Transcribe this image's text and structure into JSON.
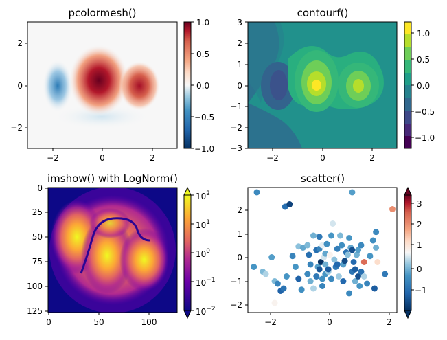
{
  "chart_data": [
    {
      "type": "heatmap",
      "title": "pcolormesh()",
      "colormap": "RdBu_r",
      "xlim": [
        -3,
        3
      ],
      "ylim": [
        -3,
        3
      ],
      "xticks": [
        "−2",
        "0",
        "2"
      ],
      "yticks": [
        "−2",
        "0",
        "2"
      ],
      "colorbar": {
        "range": [
          -1.0,
          1.0
        ],
        "ticks": [
          "1.0",
          "0.5",
          "0.0",
          "−0.5",
          "−1.0"
        ]
      },
      "peaks": [
        {
          "x": -1.8,
          "y": 0.0,
          "value": -0.6
        },
        {
          "x": -0.3,
          "y": 0.1,
          "value": 1.0
        },
        {
          "x": 1.5,
          "y": 0.0,
          "value": 0.8
        }
      ]
    },
    {
      "type": "heatmap",
      "title": "contourf()",
      "colormap": "viridis",
      "xlim": [
        -3,
        3
      ],
      "ylim": [
        -3,
        3
      ],
      "xticks": [
        "−2",
        "0",
        "2"
      ],
      "yticks": [
        "3",
        "2",
        "1",
        "0",
        "−1",
        "−2",
        "−3"
      ],
      "colorbar": {
        "range": [
          -1.2,
          1.2
        ],
        "ticks": [
          "1.0",
          "0.5",
          "0.0",
          "−0.5",
          "−1.0"
        ]
      }
    },
    {
      "type": "heatmap",
      "title": "imshow() with LogNorm()",
      "colormap": "plasma",
      "scale": "log",
      "xlim": [
        0,
        128
      ],
      "ylim": [
        128,
        0
      ],
      "xticks": [
        "0",
        "50",
        "100"
      ],
      "yticks": [
        "0",
        "25",
        "50",
        "75",
        "100",
        "125"
      ],
      "colorbar": {
        "range": [
          0.01,
          100
        ],
        "ticks": [
          "10",
          "10",
          "10",
          "10",
          "10"
        ],
        "exponents": [
          "2",
          "1",
          "0",
          "−1",
          "−2"
        ]
      }
    },
    {
      "type": "scatter",
      "title": "scatter()",
      "colormap": "RdBu_r",
      "xlim": [
        -2.8,
        2.2
      ],
      "ylim": [
        -2.3,
        2.9
      ],
      "xticks": [
        "−2",
        "0",
        "2"
      ],
      "yticks": [
        "2",
        "1",
        "0",
        "−1",
        "−2"
      ],
      "colorbar": {
        "range": [
          -2.0,
          3.6
        ],
        "ticks": [
          "3",
          "2",
          "1",
          "0",
          "−1"
        ]
      },
      "points": [
        [
          -2.5,
          2.7,
          -0.5
        ],
        [
          -1.55,
          2.1,
          -1.0
        ],
        [
          -1.4,
          2.2,
          -1.7
        ],
        [
          0.7,
          2.7,
          -0.2
        ],
        [
          2.05,
          2.0,
          2.2
        ],
        [
          -2.6,
          -0.4,
          -0.3
        ],
        [
          -2.3,
          -0.6,
          0.1
        ],
        [
          -2.2,
          -0.7,
          0.4
        ],
        [
          -2.0,
          0.0,
          -0.2
        ],
        [
          -1.9,
          -1.0,
          0.1
        ],
        [
          -1.8,
          -1.1,
          -0.6
        ],
        [
          -1.7,
          -1.4,
          -1.2
        ],
        [
          -1.6,
          -1.3,
          -0.9
        ],
        [
          -1.9,
          -1.9,
          0.9
        ],
        [
          -1.5,
          -0.8,
          -0.3
        ],
        [
          -1.3,
          0.05,
          -0.6
        ],
        [
          -1.2,
          -0.4,
          -0.3
        ],
        [
          -1.1,
          -0.9,
          -1.2
        ],
        [
          -1.1,
          0.45,
          0.2
        ],
        [
          -1.0,
          -1.35,
          -0.4
        ],
        [
          -0.95,
          0.4,
          -0.1
        ],
        [
          -0.8,
          0.5,
          0.1
        ],
        [
          -0.8,
          -0.7,
          -0.5
        ],
        [
          -0.75,
          0.1,
          -1.0
        ],
        [
          -0.7,
          -0.3,
          -0.6
        ],
        [
          -0.7,
          -1.0,
          0.0
        ],
        [
          -0.6,
          -1.3,
          0.4
        ],
        [
          -0.6,
          0.9,
          0.0
        ],
        [
          -0.5,
          0.3,
          -1.0
        ],
        [
          -0.5,
          -0.8,
          -0.8
        ],
        [
          -0.45,
          -0.4,
          -0.2
        ],
        [
          -0.4,
          0.35,
          -0.6
        ],
        [
          -0.4,
          0.85,
          -0.8
        ],
        [
          -0.4,
          -0.5,
          -1.4
        ],
        [
          -0.35,
          -0.2,
          -2.0
        ],
        [
          -0.3,
          -1.2,
          -0.6
        ],
        [
          -0.3,
          0.5,
          0.7
        ],
        [
          -0.3,
          -0.9,
          -0.4
        ],
        [
          -0.25,
          0.0,
          0.6
        ],
        [
          -0.2,
          -0.7,
          -0.3
        ],
        [
          -0.2,
          0.15,
          -0.1
        ],
        [
          -0.2,
          -0.3,
          0.0
        ],
        [
          -0.15,
          0.55,
          -0.4
        ],
        [
          -0.1,
          -0.6,
          0.3
        ],
        [
          -0.1,
          -0.5,
          -1.3
        ],
        [
          -0.05,
          0.1,
          0.9
        ],
        [
          0.0,
          -0.9,
          -0.5
        ],
        [
          0.0,
          0.9,
          -0.3
        ],
        [
          0.05,
          1.4,
          0.6
        ],
        [
          0.1,
          -0.1,
          0.2
        ],
        [
          0.15,
          -0.4,
          -0.8
        ],
        [
          0.2,
          -0.3,
          -1.1
        ],
        [
          0.2,
          0.35,
          -0.7
        ],
        [
          0.25,
          -0.8,
          0.3
        ],
        [
          0.3,
          0.9,
          0.1
        ],
        [
          0.35,
          0.5,
          -0.4
        ],
        [
          0.4,
          -1.0,
          -1.1
        ],
        [
          0.4,
          -0.3,
          -0.2
        ],
        [
          0.45,
          -0.15,
          -1.6
        ],
        [
          0.5,
          0.2,
          -0.9
        ],
        [
          0.55,
          0.1,
          0.2
        ],
        [
          0.6,
          -1.5,
          -0.5
        ],
        [
          0.6,
          0.8,
          -0.3
        ],
        [
          0.65,
          0.4,
          -0.1
        ],
        [
          0.7,
          -0.6,
          -0.9
        ],
        [
          0.7,
          0.3,
          -1.5
        ],
        [
          0.75,
          -0.2,
          -1.1
        ],
        [
          0.8,
          -1.0,
          0.0
        ],
        [
          0.8,
          -0.5,
          -1.3
        ],
        [
          0.85,
          0.1,
          0.0
        ],
        [
          0.9,
          0.3,
          -0.2
        ],
        [
          0.9,
          -0.8,
          -1.5
        ],
        [
          0.95,
          -1.2,
          -0.3
        ],
        [
          1.0,
          -0.6,
          -1.0
        ],
        [
          1.0,
          0.5,
          -0.5
        ],
        [
          1.1,
          -0.2,
          2.6
        ],
        [
          1.1,
          -0.8,
          0.4
        ],
        [
          1.2,
          -1.1,
          -0.6
        ],
        [
          1.3,
          0.05,
          -0.3
        ],
        [
          1.4,
          0.7,
          -0.4
        ],
        [
          1.45,
          -1.3,
          -1.3
        ],
        [
          1.5,
          1.05,
          -0.5
        ],
        [
          1.55,
          -0.2,
          1.3
        ],
        [
          1.8,
          -0.7,
          -0.8
        ],
        [
          1.5,
          0.4,
          0.0
        ]
      ]
    }
  ]
}
